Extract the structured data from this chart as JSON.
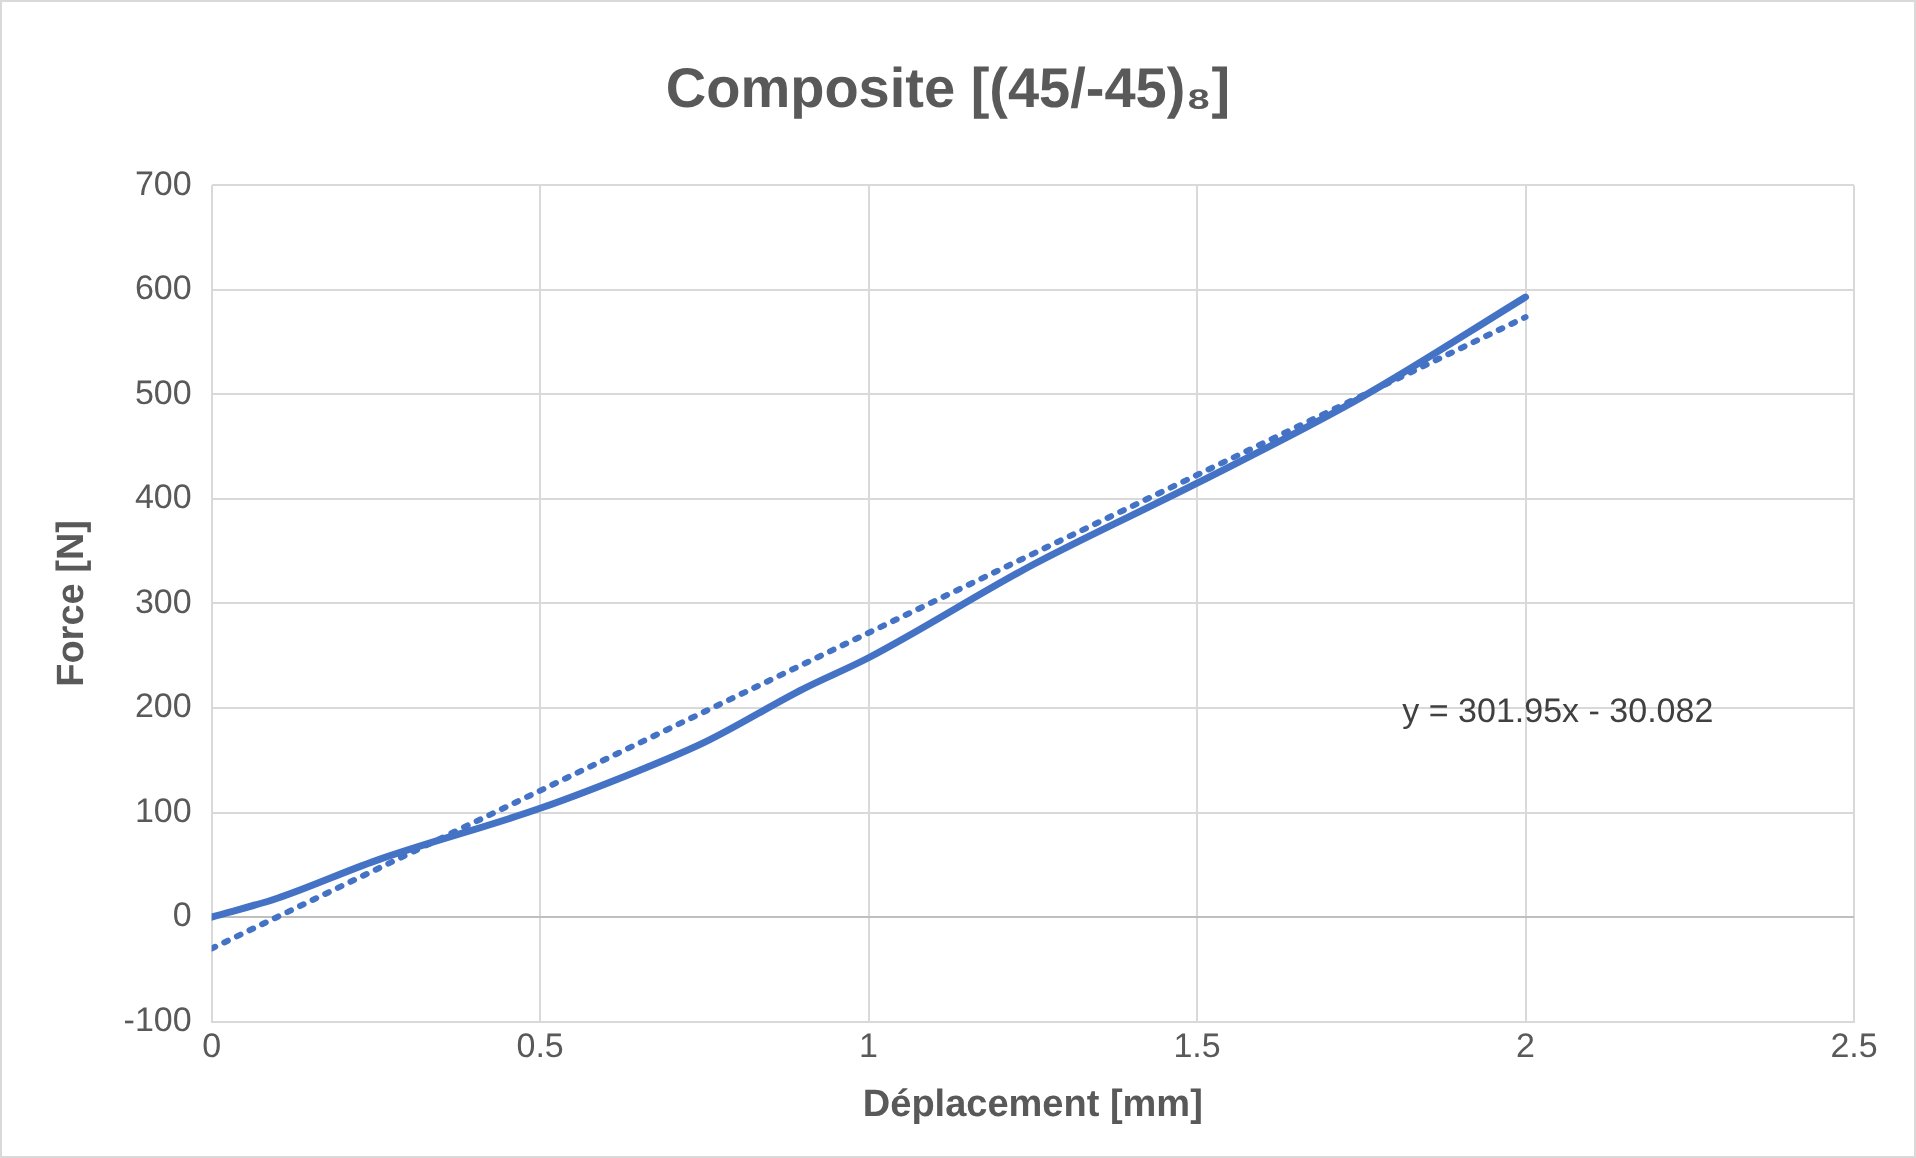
{
  "chart_data": {
    "type": "line",
    "title": "Composite [(45/-45)₈]",
    "xlabel": "Déplacement [mm]",
    "ylabel": "Force [N]",
    "series": [
      {
        "color": "#4472c4",
        "x": [
          0,
          0.1,
          0.25,
          0.5,
          0.65,
          0.75,
          0.9,
          1,
          1.25,
          1.5,
          1.75,
          2
        ],
        "values": [
          0,
          18,
          54,
          104,
          140,
          167,
          218,
          248,
          337,
          415,
          497,
          593
        ],
        "line_style": "solid"
      },
      {
        "type": "line",
        "color": "#4472c4",
        "x": [
          0,
          2
        ],
        "values": [
          -30.082,
          573.818
        ],
        "line_style": "dotted"
      }
    ],
    "annotations": [
      "y = 301.95x - 30.082"
    ],
    "xlim": [
      0,
      2.5
    ],
    "xticks": [
      0,
      0.5,
      1,
      1.5,
      2,
      2.5
    ],
    "ylim": [
      -100,
      700
    ],
    "yticks": [
      -100,
      0,
      100,
      200,
      300,
      400,
      500,
      600,
      700
    ],
    "grid": true,
    "legend": false,
    "marker": "none"
  }
}
